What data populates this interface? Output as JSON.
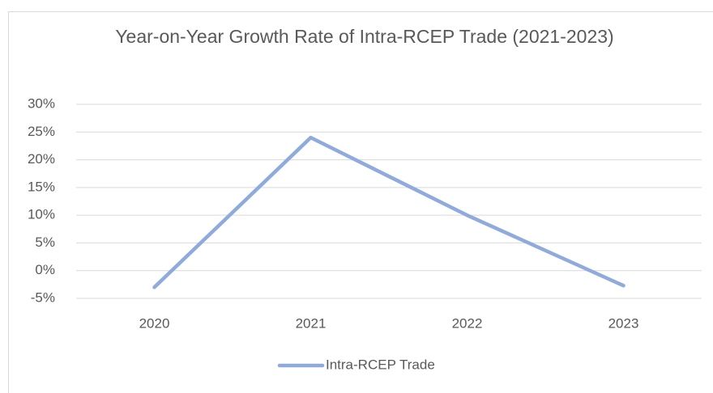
{
  "chart_data": {
    "type": "line",
    "title": "Year-on-Year Growth Rate of Intra-RCEP Trade (2021-2023)",
    "categories": [
      "2020",
      "2021",
      "2022",
      "2023"
    ],
    "series": [
      {
        "name": "Intra-RCEP Trade",
        "color": "#8faadc",
        "values": [
          -3,
          24,
          10,
          -2.7
        ]
      }
    ],
    "ylim": [
      -5,
      30
    ],
    "yticks": [
      {
        "value": -5,
        "label": "-5%"
      },
      {
        "value": 0,
        "label": "0%"
      },
      {
        "value": 5,
        "label": "5%"
      },
      {
        "value": 10,
        "label": "10%"
      },
      {
        "value": 15,
        "label": "15%"
      },
      {
        "value": 20,
        "label": "20%"
      },
      {
        "value": 25,
        "label": "25%"
      },
      {
        "value": 30,
        "label": "30%"
      }
    ],
    "grid": true,
    "legend": "bottom"
  }
}
